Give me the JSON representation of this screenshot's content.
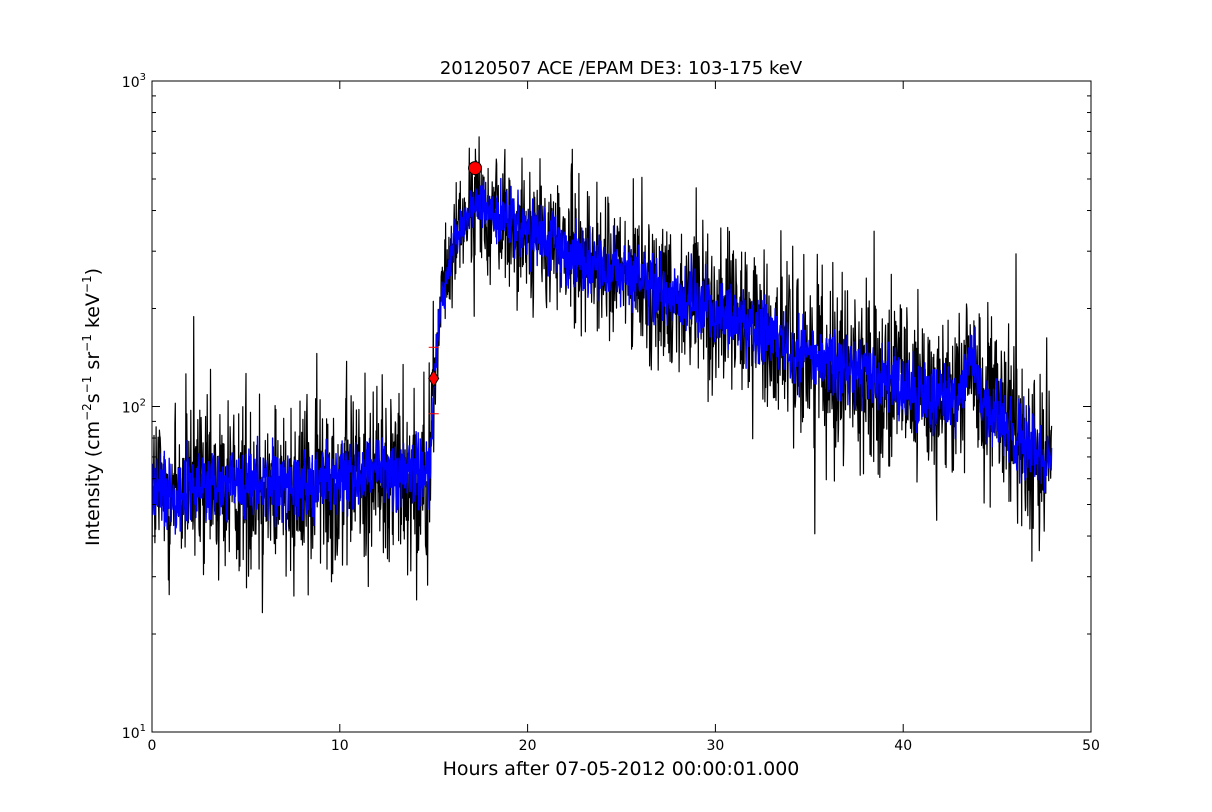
{
  "chart_data": {
    "type": "line",
    "title": "20120507 ACE /EPAM DE3: 103-175 keV",
    "xlabel": "Hours after 07-05-2012 00:00:01.000",
    "ylabel_parts": [
      "Intensity (cm",
      "−2",
      "s",
      "−1",
      " sr",
      "−1",
      " keV",
      "−1",
      ")"
    ],
    "xlim": [
      0,
      50
    ],
    "ylim": [
      10,
      1000
    ],
    "yscale": "log",
    "grid": false,
    "x_ticks": [
      0,
      10,
      20,
      30,
      40,
      50
    ],
    "x_tick_labels": [
      "0",
      "10",
      "20",
      "30",
      "40",
      "50"
    ],
    "y_ticks": [
      10,
      100,
      1000
    ],
    "y_tick_labels": [
      {
        "base": "10",
        "exp": "1"
      },
      {
        "base": "10",
        "exp": "2"
      },
      {
        "base": "10",
        "exp": "3"
      }
    ],
    "series": [
      {
        "role": "raw",
        "color": "#000000",
        "x_range": [
          0,
          47.9
        ],
        "anchors": [
          {
            "x": 0.0,
            "y": 55,
            "band": 0.55
          },
          {
            "x": 7.0,
            "y": 58,
            "band": 0.55
          },
          {
            "x": 12.0,
            "y": 62,
            "band": 0.55
          },
          {
            "x": 14.8,
            "y": 65,
            "band": 0.55
          },
          {
            "x": 15.0,
            "y": 115,
            "band": 0.3
          },
          {
            "x": 15.4,
            "y": 210,
            "band": 0.3
          },
          {
            "x": 16.2,
            "y": 340,
            "band": 0.3
          },
          {
            "x": 17.3,
            "y": 420,
            "band": 0.35
          },
          {
            "x": 20.0,
            "y": 340,
            "band": 0.4
          },
          {
            "x": 25.0,
            "y": 255,
            "band": 0.4
          },
          {
            "x": 30.0,
            "y": 195,
            "band": 0.45
          },
          {
            "x": 35.0,
            "y": 145,
            "band": 0.5
          },
          {
            "x": 40.0,
            "y": 112,
            "band": 0.5
          },
          {
            "x": 43.0,
            "y": 105,
            "band": 0.5
          },
          {
            "x": 43.6,
            "y": 150,
            "band": 0.45
          },
          {
            "x": 44.2,
            "y": 100,
            "band": 0.5
          },
          {
            "x": 47.9,
            "y": 68,
            "band": 0.55
          }
        ]
      },
      {
        "role": "smoothed",
        "color": "#0000ff",
        "x_range": [
          0,
          47.9
        ],
        "anchors": [
          {
            "x": 0.0,
            "y": 55,
            "band": 0.22
          },
          {
            "x": 7.0,
            "y": 58,
            "band": 0.22
          },
          {
            "x": 12.0,
            "y": 62,
            "band": 0.22
          },
          {
            "x": 14.8,
            "y": 65,
            "band": 0.22
          },
          {
            "x": 15.0,
            "y": 115,
            "band": 0.12
          },
          {
            "x": 15.4,
            "y": 210,
            "band": 0.12
          },
          {
            "x": 16.2,
            "y": 340,
            "band": 0.12
          },
          {
            "x": 17.3,
            "y": 420,
            "band": 0.15
          },
          {
            "x": 20.0,
            "y": 340,
            "band": 0.18
          },
          {
            "x": 25.0,
            "y": 255,
            "band": 0.18
          },
          {
            "x": 30.0,
            "y": 195,
            "band": 0.2
          },
          {
            "x": 35.0,
            "y": 145,
            "band": 0.2
          },
          {
            "x": 40.0,
            "y": 112,
            "band": 0.2
          },
          {
            "x": 43.0,
            "y": 105,
            "band": 0.2
          },
          {
            "x": 43.6,
            "y": 150,
            "band": 0.18
          },
          {
            "x": 44.2,
            "y": 100,
            "band": 0.2
          },
          {
            "x": 47.9,
            "y": 68,
            "band": 0.22
          }
        ]
      }
    ],
    "markers": [
      {
        "kind": "circle",
        "x": 17.2,
        "y": 540,
        "color": "#ff0000"
      },
      {
        "kind": "diamond",
        "x": 15.0,
        "y": 122,
        "color": "#ff0000"
      }
    ],
    "error_ticks": [
      {
        "x": 15.0,
        "y": 95,
        "color": "#ff0000"
      },
      {
        "x": 15.0,
        "y": 152,
        "color": "#ff0000"
      }
    ]
  }
}
